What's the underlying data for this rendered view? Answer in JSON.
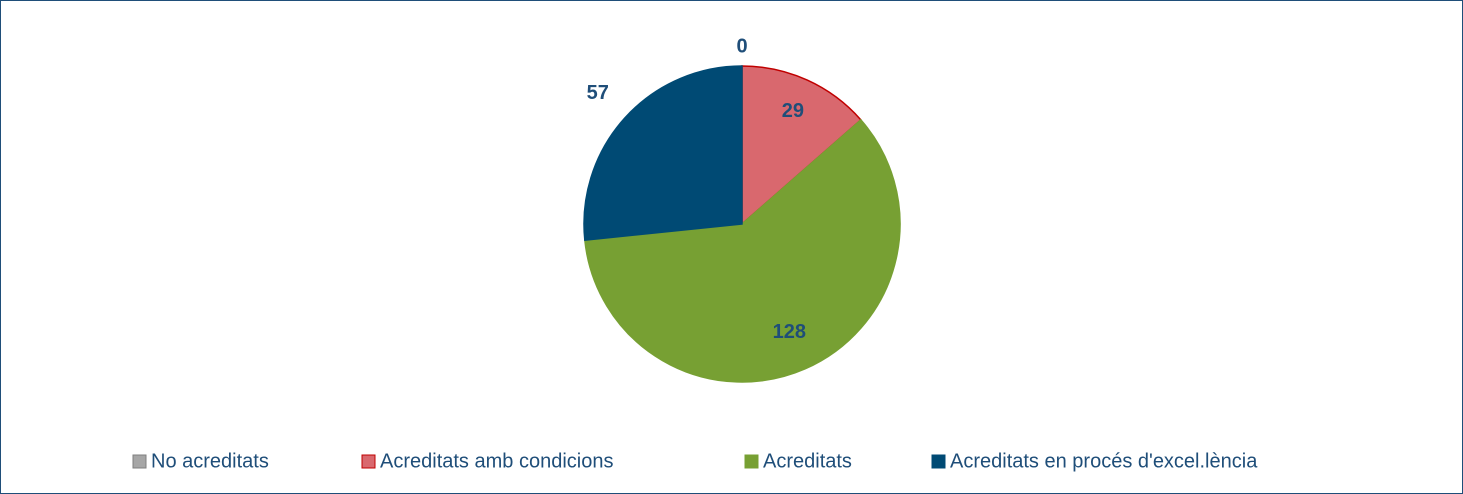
{
  "chart_data": {
    "type": "pie",
    "categories": [
      "No acreditats",
      "Acreditats amb condicions",
      "Acreditats",
      "Acreditats en procés d'excel.lència"
    ],
    "values": [
      0,
      29,
      128,
      57
    ],
    "colors": [
      "#a6a6a6",
      "#d9686e",
      "#77a033",
      "#004a74"
    ],
    "legend": "bottom"
  }
}
